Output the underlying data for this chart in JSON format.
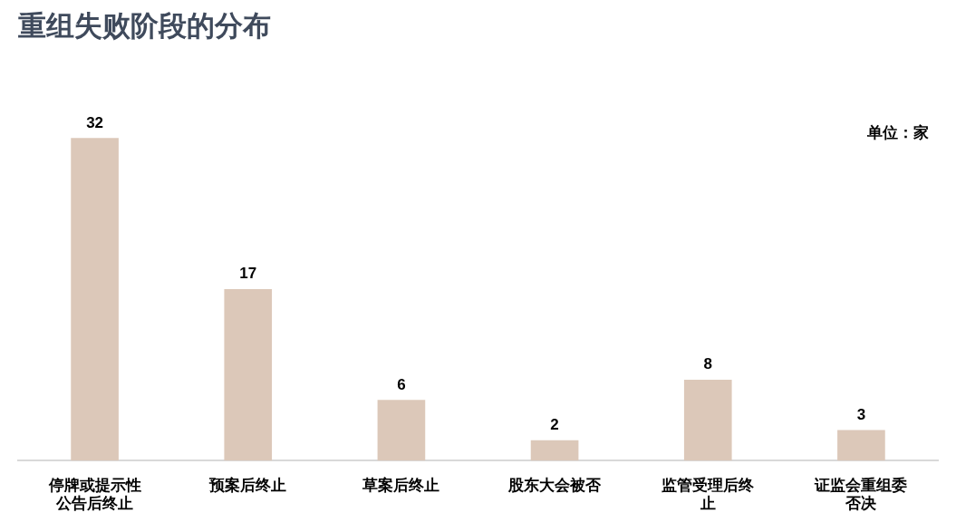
{
  "chart_data": {
    "type": "bar",
    "title": "重组失败阶段的分布",
    "categories": [
      "停牌或提示性公告后终止",
      "预案后终止",
      "草案后终止",
      "股东大会被否",
      "监管受理后终止",
      "证监会重组委否决"
    ],
    "values": [
      32,
      17,
      6,
      2,
      8,
      3
    ],
    "color": "#dcc8b9",
    "data_labels": true,
    "grid": false,
    "legend": false,
    "annotations": [
      "单位：家"
    ]
  }
}
